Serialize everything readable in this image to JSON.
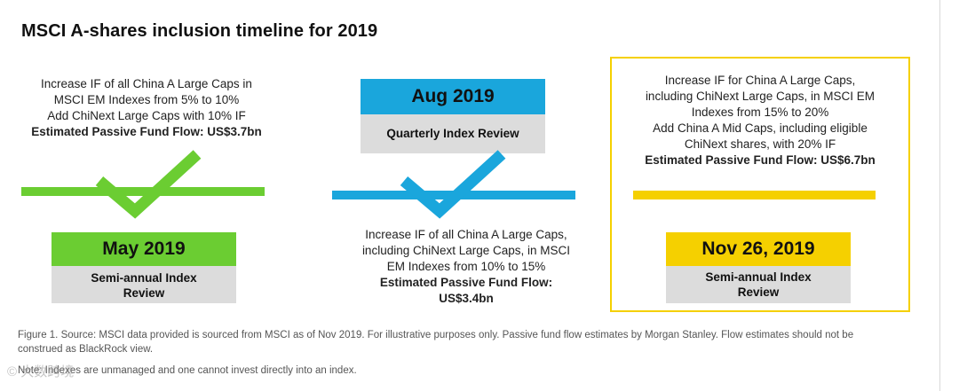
{
  "title": "MSCI A-shares inclusion timeline for 2019",
  "colors": {
    "green": "#6bcd32",
    "blue": "#1aa6dc",
    "yellow": "#f5d000",
    "gray": "#dcdcdc"
  },
  "events": {
    "may": {
      "description": [
        "Increase IF of all China A Large Caps in",
        "MSCI EM Indexes from 5% to 10%",
        "Add ChiNext Large Caps with 10% IF"
      ],
      "flow": "Estimated Passive Fund Flow: US$3.7bn",
      "date": "May 2019",
      "review": [
        "Semi-annual Index",
        "Review"
      ]
    },
    "aug": {
      "date": "Aug 2019",
      "review": "Quarterly Index Review",
      "description": [
        "Increase IF of all China A Large Caps,",
        "including ChiNext Large Caps, in MSCI",
        "EM Indexes from 10% to 15%"
      ],
      "flow": [
        "Estimated Passive Fund Flow:",
        "US$3.4bn"
      ]
    },
    "nov": {
      "description": [
        "Increase IF for China A Large Caps,",
        "including ChiNext Large Caps, in MSCI EM",
        "Indexes from 15% to 20%",
        "Add China A Mid Caps, including eligible",
        "ChiNext shares, with 20% IF"
      ],
      "flow": "Estimated Passive Fund Flow: US$6.7bn",
      "date": "Nov 26, 2019",
      "review": [
        "Semi-annual Index",
        "Review"
      ]
    }
  },
  "footnotes": {
    "figure": [
      "Figure 1. Source: MSCI data provided is sourced from MSCI as of Nov 2019. For illustrative purposes only. Passive fund flow estimates by Morgan Stanley. Flow estimates should not be",
      "construed as BlackRock view."
    ],
    "note": "Note: Indexes are unmanaged and one cannot invest directly into an index."
  },
  "watermark": "© 大数跨境"
}
